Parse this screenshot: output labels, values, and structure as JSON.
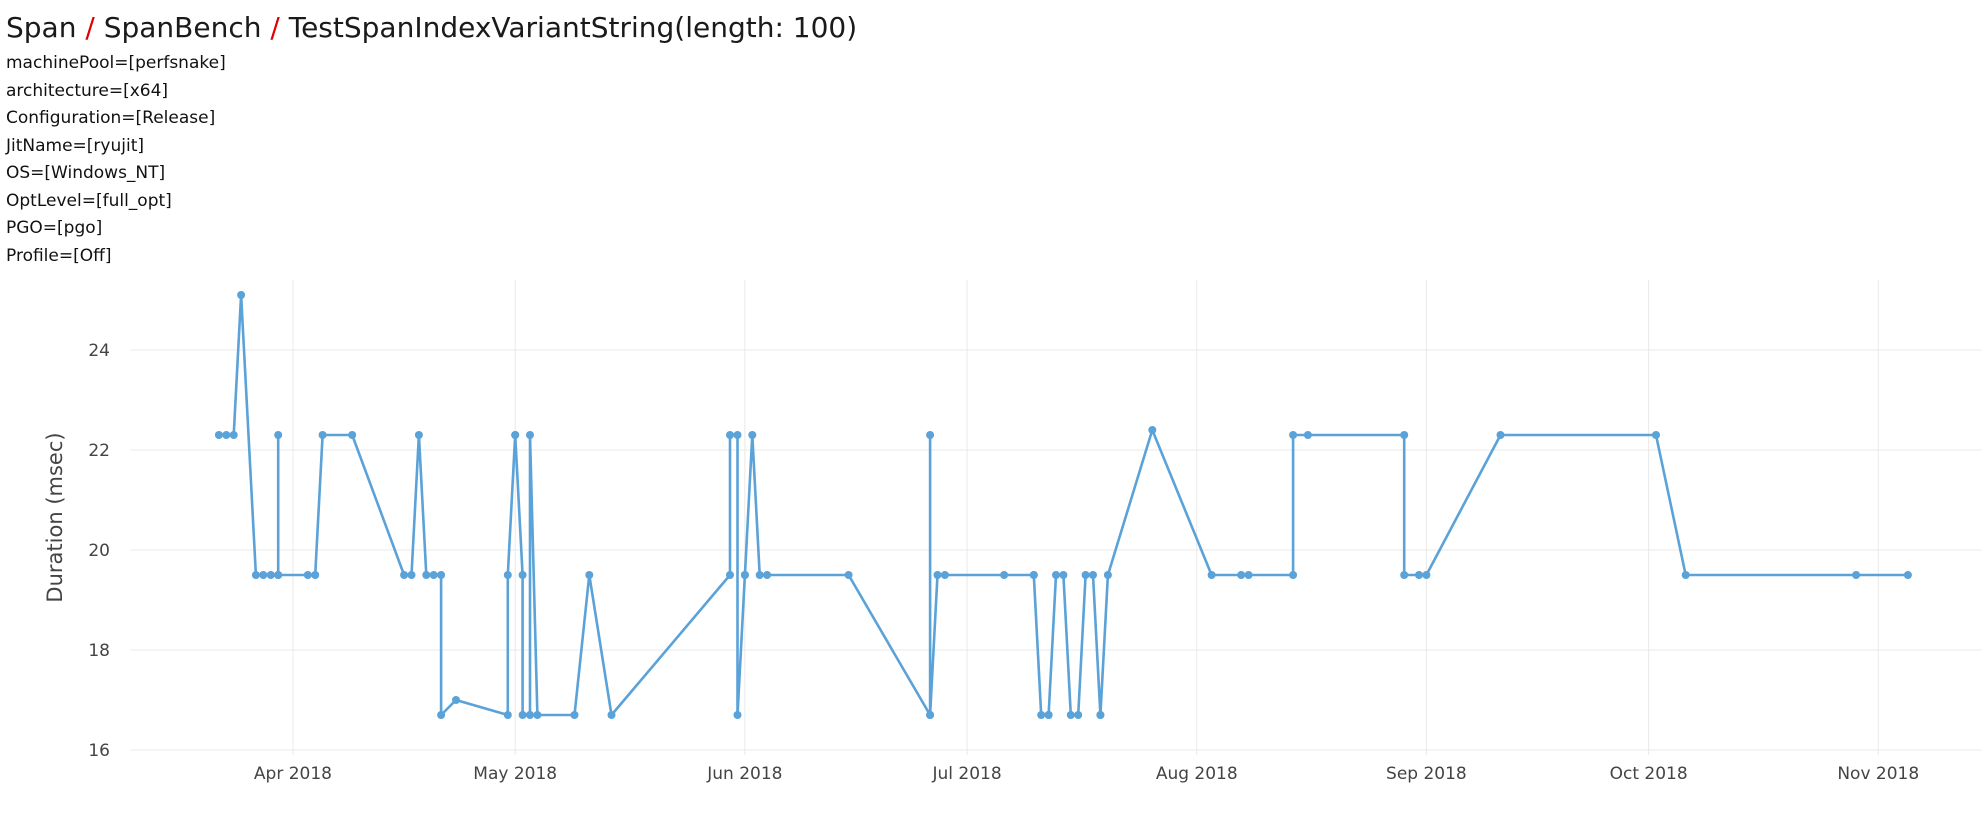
{
  "header": {
    "breadcrumb": [
      {
        "label": "Span"
      },
      {
        "label": "SpanBench"
      },
      {
        "label": "TestSpanIndexVariantString(length: 100)"
      }
    ],
    "separator": "/"
  },
  "params": [
    "machinePool=[perfsnake]",
    "architecture=[x64]",
    "Configuration=[Release]",
    "JitName=[ryujit]",
    "OS=[Windows_NT]",
    "OptLevel=[full_opt]",
    "PGO=[pgo]",
    "Profile=[Off]"
  ],
  "chart_data": {
    "type": "line",
    "title": "",
    "xlabel": "",
    "ylabel": "Duration (msec)",
    "ylim": [
      15.9,
      25.4
    ],
    "xlim": [
      "2018-03-10",
      "2018-11-15"
    ],
    "y_ticks": [
      16,
      18,
      20,
      22,
      24
    ],
    "x_ticks": [
      {
        "date": "2018-04-01",
        "label": "Apr 2018"
      },
      {
        "date": "2018-05-01",
        "label": "May 2018"
      },
      {
        "date": "2018-06-01",
        "label": "Jun 2018"
      },
      {
        "date": "2018-07-01",
        "label": "Jul 2018"
      },
      {
        "date": "2018-08-01",
        "label": "Aug 2018"
      },
      {
        "date": "2018-09-01",
        "label": "Sep 2018"
      },
      {
        "date": "2018-10-01",
        "label": "Oct 2018"
      },
      {
        "date": "2018-11-01",
        "label": "Nov 2018"
      }
    ],
    "grid": true,
    "line_color": "#5aa2d8",
    "series": [
      {
        "points": [
          {
            "x": "2018-03-22",
            "y": 22.3
          },
          {
            "x": "2018-03-23",
            "y": 22.3
          },
          {
            "x": "2018-03-24",
            "y": 22.3
          },
          {
            "x": "2018-03-25",
            "y": 25.1
          },
          {
            "x": "2018-03-27",
            "y": 19.5
          },
          {
            "x": "2018-03-28",
            "y": 19.5
          },
          {
            "x": "2018-03-29",
            "y": 19.5
          },
          {
            "x": "2018-03-30",
            "y": 19.5
          },
          {
            "x": "2018-03-30",
            "y": 22.3
          },
          {
            "x": "2018-03-30",
            "y": 19.5
          },
          {
            "x": "2018-04-03",
            "y": 19.5
          },
          {
            "x": "2018-04-04",
            "y": 19.5
          },
          {
            "x": "2018-04-05",
            "y": 22.3
          },
          {
            "x": "2018-04-09",
            "y": 22.3
          },
          {
            "x": "2018-04-16",
            "y": 19.5
          },
          {
            "x": "2018-04-17",
            "y": 19.5
          },
          {
            "x": "2018-04-18",
            "y": 22.3
          },
          {
            "x": "2018-04-19",
            "y": 19.5
          },
          {
            "x": "2018-04-20",
            "y": 19.5
          },
          {
            "x": "2018-04-21",
            "y": 19.5
          },
          {
            "x": "2018-04-21",
            "y": 16.7
          },
          {
            "x": "2018-04-23",
            "y": 17.0
          },
          {
            "x": "2018-04-30",
            "y": 16.7
          },
          {
            "x": "2018-04-30",
            "y": 19.5
          },
          {
            "x": "2018-05-01",
            "y": 22.3
          },
          {
            "x": "2018-05-01",
            "y": 22.3
          },
          {
            "x": "2018-05-02",
            "y": 19.5
          },
          {
            "x": "2018-05-02",
            "y": 16.7
          },
          {
            "x": "2018-05-03",
            "y": 16.7
          },
          {
            "x": "2018-05-03",
            "y": 22.3
          },
          {
            "x": "2018-05-04",
            "y": 16.7
          },
          {
            "x": "2018-05-09",
            "y": 16.7
          },
          {
            "x": "2018-05-11",
            "y": 19.5
          },
          {
            "x": "2018-05-14",
            "y": 16.7
          },
          {
            "x": "2018-05-30",
            "y": 19.5
          },
          {
            "x": "2018-05-30",
            "y": 22.3
          },
          {
            "x": "2018-05-31",
            "y": 22.3
          },
          {
            "x": "2018-05-31",
            "y": 16.7
          },
          {
            "x": "2018-06-01",
            "y": 19.5
          },
          {
            "x": "2018-06-01",
            "y": 19.5
          },
          {
            "x": "2018-06-02",
            "y": 22.3
          },
          {
            "x": "2018-06-03",
            "y": 19.5
          },
          {
            "x": "2018-06-04",
            "y": 19.5
          },
          {
            "x": "2018-06-15",
            "y": 19.5
          },
          {
            "x": "2018-06-26",
            "y": 16.7
          },
          {
            "x": "2018-06-26",
            "y": 22.3
          },
          {
            "x": "2018-06-26",
            "y": 16.7
          },
          {
            "x": "2018-06-27",
            "y": 19.5
          },
          {
            "x": "2018-06-28",
            "y": 19.5
          },
          {
            "x": "2018-07-06",
            "y": 19.5
          },
          {
            "x": "2018-07-10",
            "y": 19.5
          },
          {
            "x": "2018-07-10",
            "y": 19.5
          },
          {
            "x": "2018-07-11",
            "y": 16.7
          },
          {
            "x": "2018-07-12",
            "y": 16.7
          },
          {
            "x": "2018-07-12",
            "y": 16.7
          },
          {
            "x": "2018-07-13",
            "y": 19.5
          },
          {
            "x": "2018-07-14",
            "y": 19.5
          },
          {
            "x": "2018-07-15",
            "y": 16.7
          },
          {
            "x": "2018-07-16",
            "y": 16.7
          },
          {
            "x": "2018-07-17",
            "y": 19.5
          },
          {
            "x": "2018-07-18",
            "y": 19.5
          },
          {
            "x": "2018-07-19",
            "y": 16.7
          },
          {
            "x": "2018-07-19",
            "y": 16.7
          },
          {
            "x": "2018-07-20",
            "y": 19.5
          },
          {
            "x": "2018-07-26",
            "y": 22.4
          },
          {
            "x": "2018-08-03",
            "y": 19.5
          },
          {
            "x": "2018-08-07",
            "y": 19.5
          },
          {
            "x": "2018-08-08",
            "y": 19.5
          },
          {
            "x": "2018-08-14",
            "y": 19.5
          },
          {
            "x": "2018-08-14",
            "y": 22.3
          },
          {
            "x": "2018-08-16",
            "y": 22.3
          },
          {
            "x": "2018-08-29",
            "y": 22.3
          },
          {
            "x": "2018-08-29",
            "y": 19.5
          },
          {
            "x": "2018-08-31",
            "y": 19.5
          },
          {
            "x": "2018-09-01",
            "y": 19.5
          },
          {
            "x": "2018-09-11",
            "y": 22.3
          },
          {
            "x": "2018-10-02",
            "y": 22.3
          },
          {
            "x": "2018-10-06",
            "y": 19.5
          },
          {
            "x": "2018-10-29",
            "y": 19.5
          },
          {
            "x": "2018-11-05",
            "y": 19.5
          }
        ]
      }
    ]
  }
}
